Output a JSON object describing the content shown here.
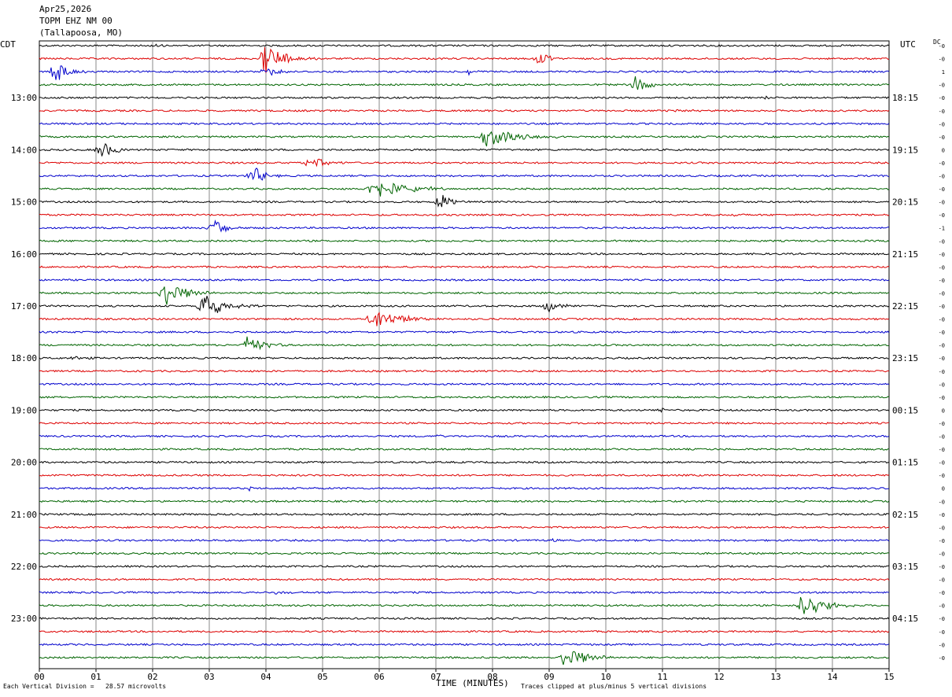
{
  "header": {
    "date": "Apr25,2026",
    "station": "TOPM EHZ NM 00",
    "location": "(Tallapoosa, MO)"
  },
  "axes": {
    "left_tz": "CDT",
    "right_tz": "UTC",
    "dc_label": "DC",
    "xlabel": "TIME (MINUTES)",
    "scale_note": "Each Vertical Division =   28.57 microvolts",
    "clip_note": "Traces clipped at plus/minus 5 vertical divisions"
  },
  "chart_data": {
    "type": "line",
    "title": "TOPM EHZ NM 00 (Tallapoosa, MO) Apr25,2026",
    "x_range_minutes": [
      0,
      15
    ],
    "x_ticks": [
      "00",
      "01",
      "02",
      "03",
      "04",
      "05",
      "06",
      "07",
      "08",
      "09",
      "10",
      "11",
      "12",
      "13",
      "14",
      "15"
    ],
    "trace_interval_minutes": 15,
    "trace_count": 48,
    "trace_colors": [
      "#000000",
      "#dd0000",
      "#0000cc",
      "#006400"
    ],
    "left_hour_labels": [
      "13:00",
      "14:00",
      "15:00",
      "16:00",
      "17:00",
      "18:00",
      "19:00",
      "20:00",
      "21:00",
      "22:00",
      "23:00"
    ],
    "right_hour_labels": [
      "18:15",
      "19:15",
      "20:15",
      "21:15",
      "22:15",
      "23:15",
      "00:15",
      "01:15",
      "02:15",
      "03:15",
      "04:15"
    ],
    "dc_offsets": [
      "-0",
      "-0",
      "1",
      "-0",
      "-0",
      "-0",
      "-0",
      "-0",
      "0",
      "-0",
      "-0",
      "-0",
      "-0",
      "-0",
      "-1",
      "-0",
      "-0",
      "-0",
      "-0",
      "-0",
      "-0",
      "-0",
      "-0",
      "-0",
      "-0",
      "-0",
      "-0",
      "-0",
      "0",
      "-0",
      "-0",
      "-0",
      "-0",
      "-0",
      "0",
      "-0",
      "-0",
      "-0",
      "-0",
      "-0",
      "-0",
      "-0",
      "-0",
      "-0",
      "-0",
      "-0",
      "-0",
      "-0"
    ],
    "events": [
      {
        "trace": 0,
        "minute": 2.1,
        "amp": 2,
        "dur": 0.25
      },
      {
        "trace": 1,
        "minute": 4.0,
        "amp": 20,
        "dur": 0.9
      },
      {
        "trace": 1,
        "minute": 8.8,
        "amp": 9,
        "dur": 0.5
      },
      {
        "trace": 2,
        "minute": 0.3,
        "amp": 14,
        "dur": 0.6
      },
      {
        "trace": 2,
        "minute": 4.0,
        "amp": 7,
        "dur": 0.5
      },
      {
        "trace": 2,
        "minute": 7.6,
        "amp": 5,
        "dur": 0.3
      },
      {
        "trace": 3,
        "minute": 10.5,
        "amp": 12,
        "dur": 0.6
      },
      {
        "trace": 4,
        "minute": 12.9,
        "amp": 2,
        "dur": 0.2
      },
      {
        "trace": 5,
        "minute": 11.2,
        "amp": 2,
        "dur": 0.8
      },
      {
        "trace": 7,
        "minute": 7.9,
        "amp": 14,
        "dur": 1.3
      },
      {
        "trace": 8,
        "minute": 1.1,
        "amp": 10,
        "dur": 0.8
      },
      {
        "trace": 9,
        "minute": 4.8,
        "amp": 8,
        "dur": 0.7
      },
      {
        "trace": 10,
        "minute": 3.8,
        "amp": 12,
        "dur": 0.5
      },
      {
        "trace": 11,
        "minute": 5.9,
        "amp": 13,
        "dur": 1.6
      },
      {
        "trace": 12,
        "minute": 7.1,
        "amp": 11,
        "dur": 0.5
      },
      {
        "trace": 13,
        "minute": 12.2,
        "amp": 2,
        "dur": 0.3
      },
      {
        "trace": 14,
        "minute": 3.1,
        "amp": 11,
        "dur": 0.6
      },
      {
        "trace": 19,
        "minute": 2.2,
        "amp": 20,
        "dur": 0.9
      },
      {
        "trace": 20,
        "minute": 2.9,
        "amp": 18,
        "dur": 1.0
      },
      {
        "trace": 20,
        "minute": 9.0,
        "amp": 8,
        "dur": 0.5
      },
      {
        "trace": 21,
        "minute": 5.9,
        "amp": 14,
        "dur": 1.2
      },
      {
        "trace": 23,
        "minute": 3.7,
        "amp": 13,
        "dur": 0.7
      },
      {
        "trace": 24,
        "minute": 0.6,
        "amp": 2,
        "dur": 0.6
      },
      {
        "trace": 28,
        "minute": 11.0,
        "amp": 5,
        "dur": 0.1
      },
      {
        "trace": 30,
        "minute": 7.05,
        "amp": 4,
        "dur": 0.1
      },
      {
        "trace": 34,
        "minute": 3.75,
        "amp": 3,
        "dur": 0.1
      },
      {
        "trace": 38,
        "minute": 9.1,
        "amp": 2,
        "dur": 0.2
      },
      {
        "trace": 42,
        "minute": 4.2,
        "amp": 2,
        "dur": 0.5
      },
      {
        "trace": 43,
        "minute": 13.5,
        "amp": 18,
        "dur": 0.9
      },
      {
        "trace": 47,
        "minute": 9.3,
        "amp": 16,
        "dur": 0.9
      }
    ]
  }
}
